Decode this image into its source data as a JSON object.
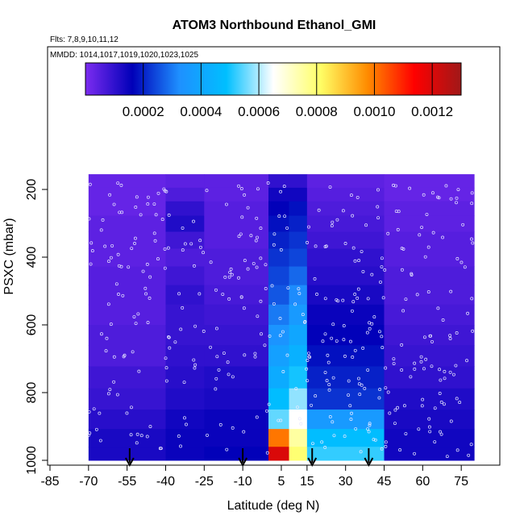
{
  "chart_data": {
    "type": "heatmap",
    "title": "ATOM3 Northbound Ethanol_GMI",
    "flights_label": "Flts: 7,8,9,10,11,12",
    "dates_label": "MMDD: 1014,1017,1019,1020,1023,1025",
    "xlabel": "Latitude (deg N)",
    "ylabel": "PSXC (mbar)",
    "xlim": [
      -85,
      90
    ],
    "ylim": [
      1000,
      100
    ],
    "x_ticks": [
      -85,
      -70,
      -55,
      -40,
      -25,
      -10,
      5,
      15,
      30,
      45,
      60,
      75
    ],
    "y_ticks": [
      200,
      400,
      600,
      800,
      1000
    ],
    "colorbar": {
      "min": 0,
      "max": 0.0013,
      "tick_values": [
        0.0002,
        0.0004,
        0.0006,
        0.0008,
        0.001,
        0.0012
      ],
      "tick_labels": [
        "0.0002",
        "0.0004",
        "0.0006",
        "0.0008",
        "0.0010",
        "0.0012"
      ],
      "colors": [
        "#7c2cf0",
        "#0000b8",
        "#1e90ff",
        "#00bfff",
        "#ffffff",
        "#ffff66",
        "#ff8c00",
        "#ff0000",
        "#a01818"
      ]
    },
    "pressure_levels": [
      175,
      215,
      255,
      300,
      350,
      400,
      455,
      510,
      570,
      630,
      690,
      755,
      820,
      880,
      935,
      985
    ],
    "latitude_bands": [
      {
        "lat_start": -70,
        "lat_end": -40,
        "values": [
          3e-05,
          3e-05,
          3e-05,
          4e-05,
          4e-05,
          4e-05,
          5e-05,
          5e-05,
          5e-05,
          6e-05,
          6e-05,
          8e-05,
          9e-05,
          0.00011,
          0.00013,
          0.00013
        ]
      },
      {
        "lat_start": -40,
        "lat_end": -25,
        "values": [
          4e-05,
          6e-05,
          0.0001,
          0.00012,
          8e-05,
          6e-05,
          8e-05,
          0.0001,
          9e-05,
          9e-05,
          0.0001,
          0.00011,
          0.00012,
          0.00014,
          0.00015,
          0.00015
        ]
      },
      {
        "lat_start": -25,
        "lat_end": 0,
        "values": [
          4e-05,
          4e-05,
          5e-05,
          5e-05,
          5e-05,
          6e-05,
          6e-05,
          7e-05,
          8e-05,
          9e-05,
          0.0001,
          0.00012,
          0.00013,
          0.00015,
          0.00015,
          0.00016
        ]
      },
      {
        "lat_start": 0,
        "lat_end": 8,
        "values": [
          0.0001,
          0.00014,
          0.00016,
          0.00018,
          0.0002,
          0.00022,
          0.00024,
          0.00026,
          0.0003,
          0.00034,
          0.00038,
          0.00042,
          0.00048,
          0.00055,
          0.001,
          0.0012
        ]
      },
      {
        "lat_start": 8,
        "lat_end": 15,
        "values": [
          0.0001,
          0.00014,
          0.00018,
          0.0002,
          0.00022,
          0.00024,
          0.00028,
          0.00032,
          0.00036,
          0.0004,
          0.00044,
          0.0005,
          0.00058,
          0.00065,
          0.00075,
          0.0008
        ]
      },
      {
        "lat_start": 15,
        "lat_end": 45,
        "values": [
          4e-05,
          5e-05,
          6e-05,
          7e-05,
          8e-05,
          0.0001,
          0.00011,
          0.00013,
          0.00015,
          0.00016,
          0.00018,
          0.0002,
          0.00022,
          0.00036,
          0.00048,
          0.00052
        ]
      },
      {
        "lat_start": 45,
        "lat_end": 80,
        "values": [
          3e-05,
          3e-05,
          4e-05,
          4e-05,
          5e-05,
          5e-05,
          6e-05,
          6e-05,
          7e-05,
          8e-05,
          9e-05,
          0.0001,
          0.00012,
          0.00013,
          0.00014,
          0.00014
        ]
      }
    ],
    "arrow_markers_lat": [
      -54,
      -10,
      17,
      39
    ],
    "grid": false,
    "legend": "colorbar top"
  }
}
